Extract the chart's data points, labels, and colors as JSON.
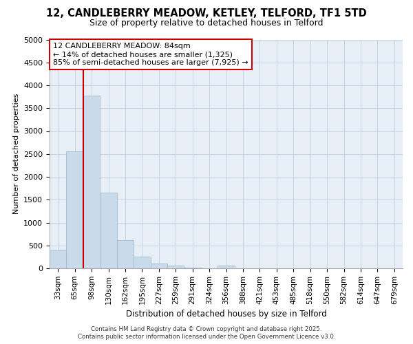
{
  "title_line1": "12, CANDLEBERRY MEADOW, KETLEY, TELFORD, TF1 5TD",
  "title_line2": "Size of property relative to detached houses in Telford",
  "xlabel": "Distribution of detached houses by size in Telford",
  "ylabel": "Number of detached properties",
  "categories": [
    "33sqm",
    "65sqm",
    "98sqm",
    "130sqm",
    "162sqm",
    "195sqm",
    "227sqm",
    "259sqm",
    "291sqm",
    "324sqm",
    "356sqm",
    "388sqm",
    "421sqm",
    "453sqm",
    "485sqm",
    "518sqm",
    "550sqm",
    "582sqm",
    "614sqm",
    "647sqm",
    "679sqm"
  ],
  "values": [
    400,
    2550,
    3780,
    1650,
    620,
    250,
    110,
    55,
    20,
    0,
    55,
    0,
    0,
    0,
    0,
    0,
    0,
    0,
    0,
    0,
    0
  ],
  "bar_color": "#c9daea",
  "bar_edge_color": "#a0bccc",
  "highlight_bar_color": "#cc0000",
  "vline_x": 1.5,
  "annotation_line1": "12 CANDLEBERRY MEADOW: 84sqm",
  "annotation_line2": "← 14% of detached houses are smaller (1,325)",
  "annotation_line3": "85% of semi-detached houses are larger (7,925) →",
  "ylim": [
    0,
    5000
  ],
  "yticks": [
    0,
    500,
    1000,
    1500,
    2000,
    2500,
    3000,
    3500,
    4000,
    4500,
    5000
  ],
  "grid_color": "#c5d3e0",
  "background_color": "#e8eef5",
  "footer_line1": "Contains HM Land Registry data © Crown copyright and database right 2025.",
  "footer_line2": "Contains public sector information licensed under the Open Government Licence v3.0."
}
